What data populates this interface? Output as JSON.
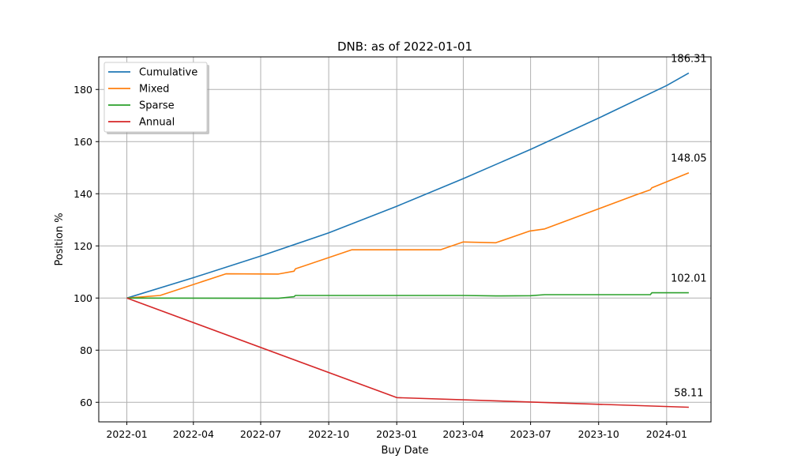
{
  "chart_data": {
    "type": "line",
    "title": "DNB: as of 2022-01-01",
    "xlabel": "Buy Date",
    "ylabel": "Position %",
    "xlim": [
      "2021-11-24",
      "2024-03-01"
    ],
    "ylim": [
      52.5,
      192.5
    ],
    "x_ticks": [
      "2022-01",
      "2022-04",
      "2022-07",
      "2022-10",
      "2023-01",
      "2023-04",
      "2023-07",
      "2023-10",
      "2024-01"
    ],
    "y_ticks": [
      60,
      80,
      100,
      120,
      140,
      160,
      180
    ],
    "grid": true,
    "legend_position": "upper-left",
    "series": [
      {
        "name": "Cumulative",
        "color": "#1f77b4",
        "points": [
          [
            "2022-01-01",
            100
          ],
          [
            "2022-04-01",
            107.8
          ],
          [
            "2022-07-01",
            116.1
          ],
          [
            "2022-10-01",
            125.0
          ],
          [
            "2023-01-01",
            135.2
          ],
          [
            "2023-04-01",
            145.8
          ],
          [
            "2023-07-01",
            157.0
          ],
          [
            "2023-10-01",
            169.0
          ],
          [
            "2024-01-01",
            181.5
          ],
          [
            "2024-01-31",
            186.31
          ]
        ],
        "end_label": "186.31"
      },
      {
        "name": "Mixed",
        "color": "#ff7f0e",
        "points": [
          [
            "2022-01-01",
            100
          ],
          [
            "2022-02-15",
            101.0
          ],
          [
            "2022-05-15",
            109.3
          ],
          [
            "2022-07-25",
            109.2
          ],
          [
            "2022-08-15",
            110.3
          ],
          [
            "2022-08-17",
            111.2
          ],
          [
            "2022-11-01",
            118.5
          ],
          [
            "2023-03-01",
            118.5
          ],
          [
            "2023-04-01",
            121.5
          ],
          [
            "2023-05-15",
            121.2
          ],
          [
            "2023-06-30",
            125.7
          ],
          [
            "2023-07-20",
            126.5
          ],
          [
            "2023-11-20",
            139.5
          ],
          [
            "2023-12-10",
            141.5
          ],
          [
            "2023-12-12",
            142.3
          ],
          [
            "2024-01-31",
            148.05
          ]
        ],
        "end_label": "148.05"
      },
      {
        "name": "Sparse",
        "color": "#2ca02c",
        "points": [
          [
            "2022-01-01",
            100
          ],
          [
            "2022-07-25",
            99.9
          ],
          [
            "2022-08-15",
            100.5
          ],
          [
            "2022-08-17",
            101.0
          ],
          [
            "2023-04-01",
            101.0
          ],
          [
            "2023-05-15",
            100.8
          ],
          [
            "2023-07-01",
            100.9
          ],
          [
            "2023-07-20",
            101.3
          ],
          [
            "2023-12-10",
            101.3
          ],
          [
            "2023-12-12",
            102.0
          ],
          [
            "2024-01-31",
            102.01
          ]
        ],
        "end_label": "102.01"
      },
      {
        "name": "Annual",
        "color": "#d62728",
        "points": [
          [
            "2022-01-01",
            100
          ],
          [
            "2023-01-01",
            61.8
          ],
          [
            "2024-01-31",
            58.11
          ]
        ],
        "end_label": "58.11"
      }
    ]
  }
}
